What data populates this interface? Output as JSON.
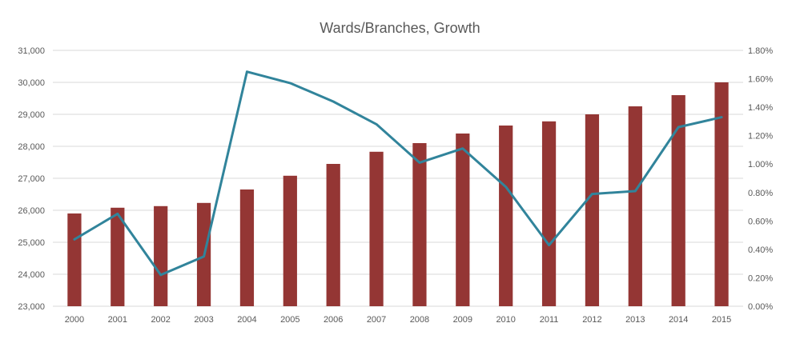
{
  "chart_data": {
    "type": "bar",
    "title": "Wards/Branches, Growth",
    "categories": [
      "2000",
      "2001",
      "2002",
      "2003",
      "2004",
      "2005",
      "2006",
      "2007",
      "2008",
      "2009",
      "2010",
      "2011",
      "2012",
      "2013",
      "2014",
      "2015"
    ],
    "series": [
      {
        "chart_type": "bar",
        "axis": "left",
        "color": "#943634",
        "values": [
          25900,
          26080,
          26130,
          26230,
          26650,
          27080,
          27450,
          27830,
          28100,
          28400,
          28650,
          28780,
          29000,
          29250,
          29600,
          30000
        ]
      },
      {
        "chart_type": "line",
        "axis": "right",
        "color": "#31849B",
        "values": [
          0.47,
          0.65,
          0.22,
          0.35,
          1.65,
          1.57,
          1.44,
          1.28,
          1.01,
          1.11,
          0.84,
          0.43,
          0.79,
          0.81,
          1.26,
          1.33
        ]
      }
    ],
    "y_left": {
      "ylim": [
        23000,
        31000
      ],
      "tick_labels": [
        "23,000",
        "24,000",
        "25,000",
        "26,000",
        "27,000",
        "28,000",
        "29,000",
        "30,000",
        "31,000"
      ]
    },
    "y_right": {
      "ylim": [
        0,
        1.8
      ],
      "tick_labels": [
        "0.00%",
        "0.20%",
        "0.40%",
        "0.60%",
        "0.80%",
        "1.00%",
        "1.20%",
        "1.40%",
        "1.60%",
        "1.80%"
      ]
    },
    "grid": true,
    "legend": "none"
  }
}
